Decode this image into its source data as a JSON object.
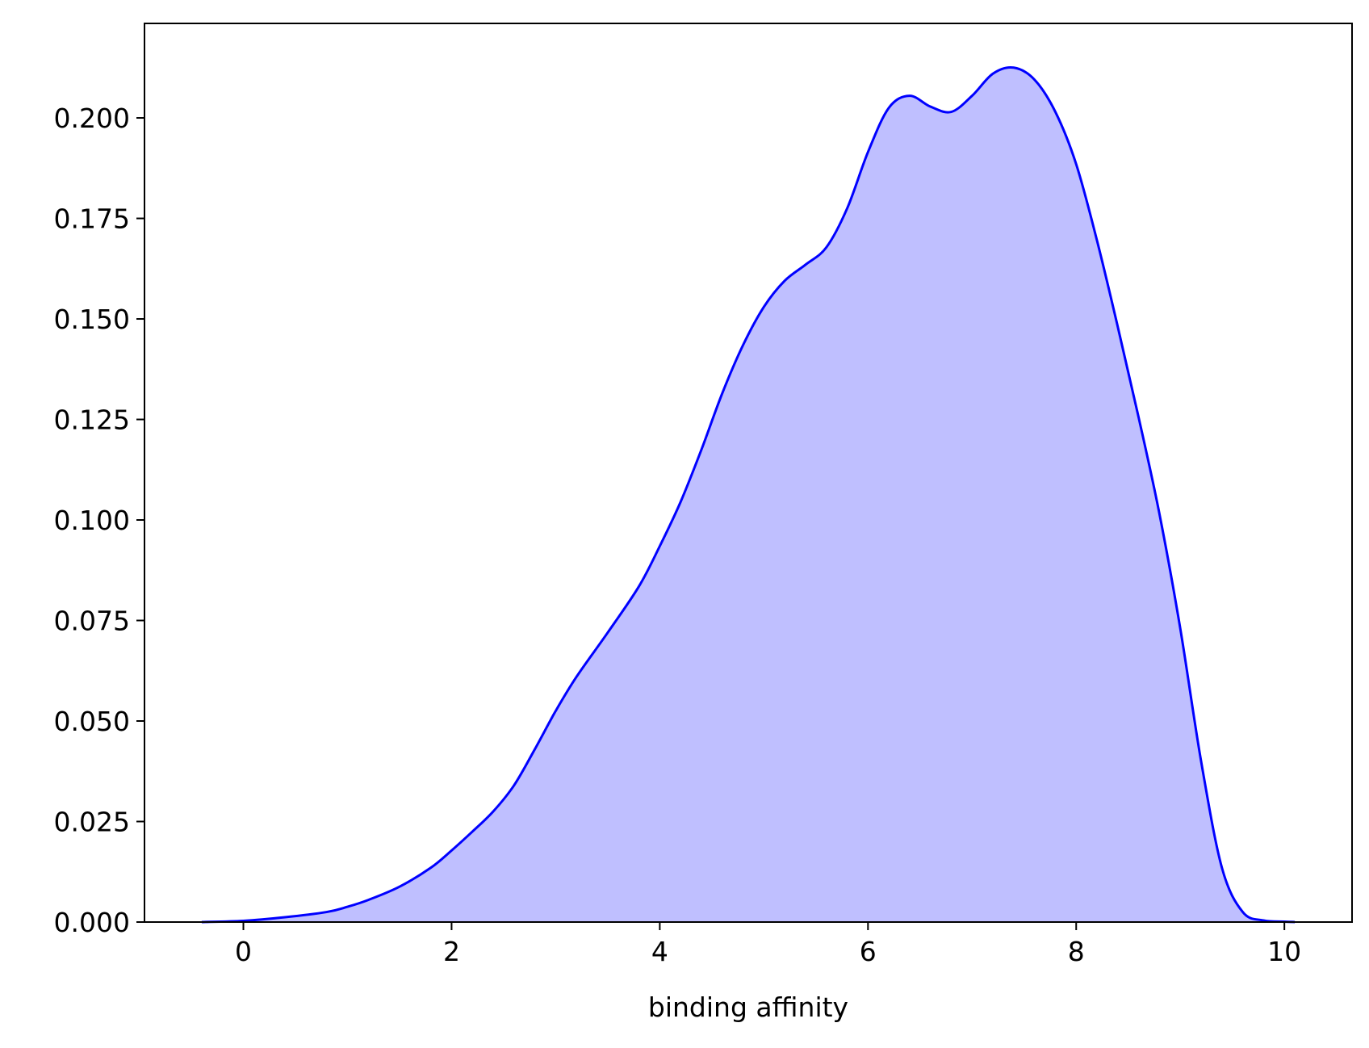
{
  "chart_data": {
    "type": "area",
    "title": "",
    "xlabel": "binding affinity",
    "ylabel": "",
    "xlim": [
      -0.95,
      10.65
    ],
    "ylim": [
      0,
      0.2235
    ],
    "grid": false,
    "legend": "none",
    "xticks": [
      0,
      2,
      4,
      6,
      8,
      10
    ],
    "xtick_labels": [
      "0",
      "2",
      "4",
      "6",
      "8",
      "10"
    ],
    "yticks": [
      0,
      0.025,
      0.05,
      0.075,
      0.1,
      0.125,
      0.15,
      0.175,
      0.2
    ],
    "ytick_labels": [
      "0.000",
      "0.025",
      "0.050",
      "0.075",
      "0.100",
      "0.125",
      "0.150",
      "0.175",
      "0.200"
    ],
    "colors": {
      "line": "#0000ff",
      "fill": "#bfbfff",
      "axes": "#000000",
      "background": "#ffffff"
    },
    "series": [
      {
        "x": [
          -0.4,
          0.0,
          0.4,
          0.8,
          1.0,
          1.2,
          1.5,
          1.8,
          2.0,
          2.2,
          2.4,
          2.6,
          2.8,
          3.0,
          3.2,
          3.5,
          3.8,
          4.0,
          4.2,
          4.4,
          4.6,
          4.8,
          5.0,
          5.2,
          5.4,
          5.6,
          5.8,
          6.0,
          6.2,
          6.4,
          6.6,
          6.8,
          7.0,
          7.2,
          7.4,
          7.6,
          7.8,
          8.0,
          8.2,
          8.4,
          8.6,
          8.8,
          9.0,
          9.2,
          9.4,
          9.6,
          9.8,
          10.0,
          10.1
        ],
        "y": [
          0.0,
          0.0003,
          0.0012,
          0.0025,
          0.0038,
          0.0055,
          0.0088,
          0.0135,
          0.0178,
          0.0225,
          0.0275,
          0.034,
          0.043,
          0.0525,
          0.061,
          0.072,
          0.0835,
          0.0935,
          0.1045,
          0.1175,
          0.1315,
          0.1435,
          0.153,
          0.1595,
          0.1635,
          0.1678,
          0.1775,
          0.1915,
          0.2025,
          0.2055,
          0.2028,
          0.2015,
          0.2055,
          0.211,
          0.2125,
          0.2095,
          0.2015,
          0.1885,
          0.1695,
          0.148,
          0.1255,
          0.1015,
          0.073,
          0.04,
          0.0135,
          0.0025,
          0.0004,
          0.0001,
          0.0
        ]
      }
    ]
  }
}
